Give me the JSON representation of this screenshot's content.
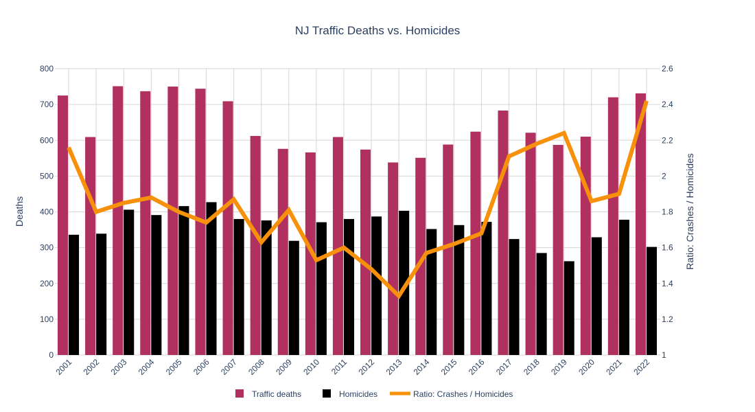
{
  "chart_data": {
    "type": "bar",
    "title": "NJ Traffic Deaths vs. Homicides",
    "categories": [
      "2001",
      "2002",
      "2003",
      "2004",
      "2005",
      "2006",
      "2007",
      "2008",
      "2009",
      "2010",
      "2011",
      "2012",
      "2013",
      "2014",
      "2015",
      "2016",
      "2017",
      "2018",
      "2019",
      "2020",
      "2021",
      "2022"
    ],
    "series": [
      {
        "name": "Traffic deaths",
        "kind": "bar",
        "axis": "y",
        "color": "#b03060",
        "values": [
          725,
          609,
          751,
          737,
          750,
          744,
          709,
          612,
          576,
          566,
          609,
          574,
          538,
          551,
          588,
          624,
          683,
          621,
          587,
          610,
          720,
          731
        ]
      },
      {
        "name": "Homicides",
        "kind": "bar",
        "axis": "y",
        "color": "#000000",
        "values": [
          336,
          339,
          406,
          391,
          416,
          427,
          380,
          376,
          319,
          371,
          380,
          387,
          403,
          352,
          363,
          372,
          324,
          285,
          262,
          329,
          378,
          302
        ]
      },
      {
        "name": "Ratio: Crashes / Homicides",
        "kind": "line",
        "axis": "y2",
        "color": "#f7900a",
        "values": [
          2.16,
          1.8,
          1.85,
          1.88,
          1.8,
          1.74,
          1.87,
          1.63,
          1.81,
          1.53,
          1.6,
          1.48,
          1.33,
          1.57,
          1.62,
          1.68,
          2.11,
          2.18,
          2.24,
          1.86,
          1.9,
          2.42
        ]
      }
    ],
    "ylabel": "Deaths",
    "ylim": [
      0,
      800
    ],
    "yticks": [
      0,
      100,
      200,
      300,
      400,
      500,
      600,
      700,
      800
    ],
    "y2label": "Ratio: Crashes / Homicides",
    "y2lim": [
      1,
      2.6
    ],
    "y2ticks": [
      "1",
      "1.2",
      "1.4",
      "1.6",
      "1.8",
      "2",
      "2.2",
      "2.4",
      "2.6"
    ],
    "grid": true,
    "legend_position": "bottom-center"
  }
}
